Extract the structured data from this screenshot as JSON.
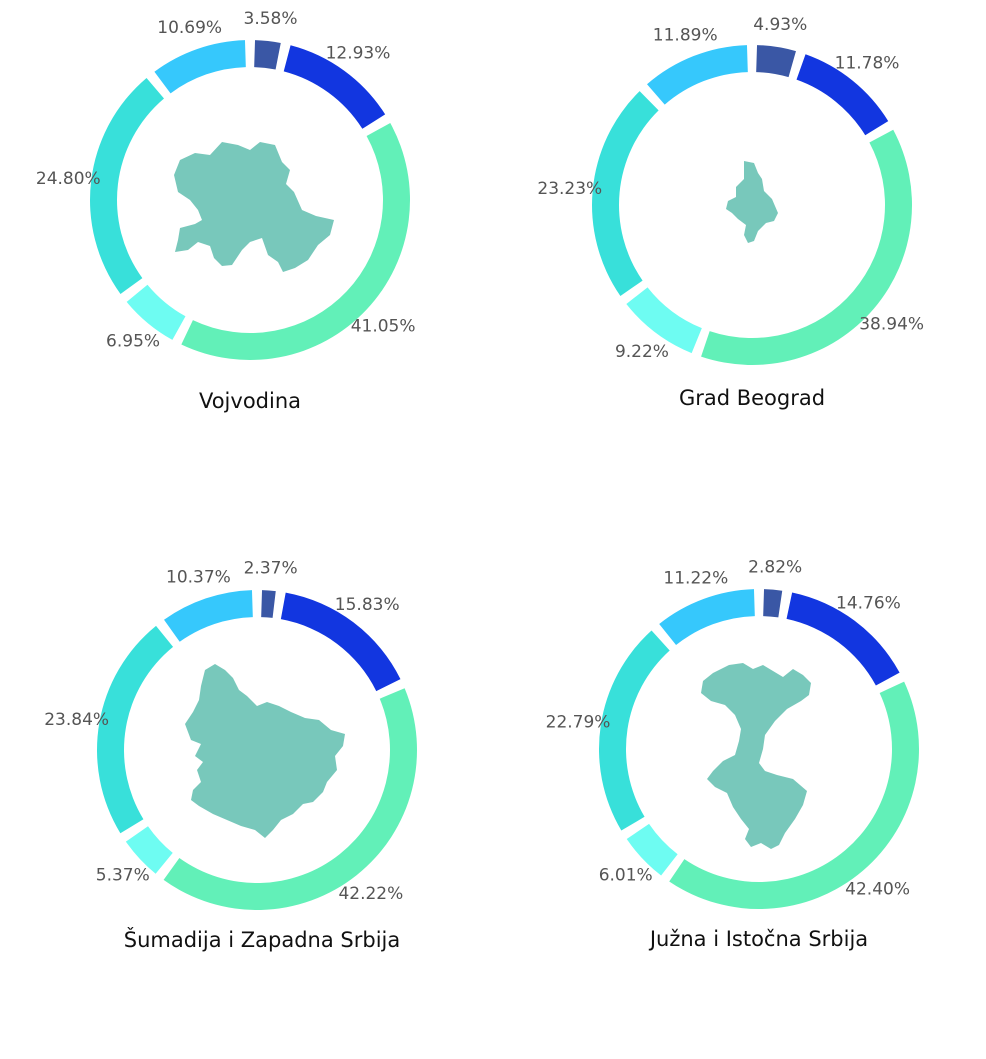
{
  "chart_data": [
    {
      "type": "pie",
      "title": "Vojvodina",
      "values": [
        3.58,
        12.93,
        41.05,
        6.95,
        24.8,
        10.69
      ],
      "labels": [
        "3.58%",
        "12.93%",
        "41.05%",
        "6.95%",
        "24.80%",
        "10.69%"
      ],
      "colors": [
        "#3a57a5",
        "#1236e0",
        "#62f0b8",
        "#6efcf2",
        "#38e0da",
        "#36c8fc"
      ],
      "center_icon": "vojvodina-map-icon",
      "center_color": "#78c8bb"
    },
    {
      "type": "pie",
      "title": "Grad Beograd",
      "values": [
        4.93,
        11.78,
        38.94,
        9.22,
        23.23,
        11.89
      ],
      "labels": [
        "4.93%",
        "11.78%",
        "38.94%",
        "9.22%",
        "23.23%",
        "11.89%"
      ],
      "colors": [
        "#3a57a5",
        "#1236e0",
        "#62f0b8",
        "#6efcf2",
        "#38e0da",
        "#36c8fc"
      ],
      "center_icon": "beograd-map-icon",
      "center_color": "#78c8bb"
    },
    {
      "type": "pie",
      "title": "Šumadija i Zapadna Srbija",
      "values": [
        2.37,
        15.83,
        42.22,
        5.37,
        23.84,
        10.37
      ],
      "labels": [
        "2.37%",
        "15.83%",
        "42.22%",
        "5.37%",
        "23.84%",
        "10.37%"
      ],
      "colors": [
        "#3a57a5",
        "#1236e0",
        "#62f0b8",
        "#6efcf2",
        "#38e0da",
        "#36c8fc"
      ],
      "center_icon": "sumadija-map-icon",
      "center_color": "#78c8bb"
    },
    {
      "type": "pie",
      "title": "Južna i Istočna Srbija",
      "values": [
        2.82,
        14.76,
        42.4,
        6.01,
        22.79,
        11.22
      ],
      "labels": [
        "2.82%",
        "14.76%",
        "42.40%",
        "6.01%",
        "22.79%",
        "11.22%"
      ],
      "colors": [
        "#3a57a5",
        "#1236e0",
        "#62f0b8",
        "#6efcf2",
        "#38e0da",
        "#36c8fc"
      ],
      "center_icon": "juzna-srbija-map-icon",
      "center_color": "#78c8bb"
    }
  ]
}
